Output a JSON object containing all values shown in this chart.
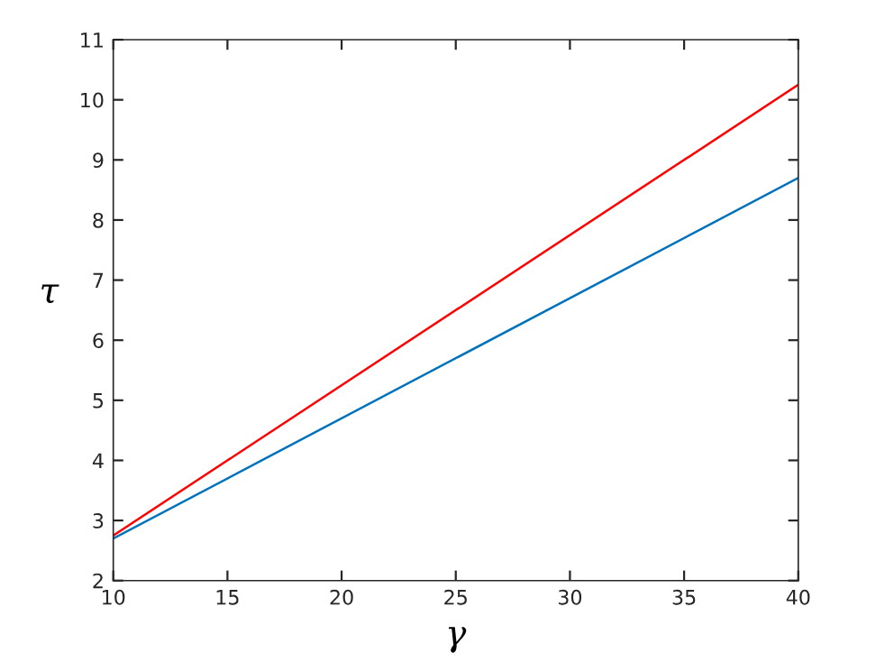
{
  "chart_data": {
    "type": "line",
    "xlabel": "γ",
    "ylabel": "τ",
    "x": [
      10,
      40
    ],
    "series": [
      {
        "color": "#ff0000",
        "values": [
          2.75,
          10.25
        ]
      },
      {
        "color": "#0072bd",
        "values": [
          2.7,
          8.7
        ]
      }
    ],
    "xlim": [
      10,
      40
    ],
    "xticks": [
      10,
      15,
      20,
      25,
      30,
      35,
      40
    ],
    "ylim": [
      2,
      11
    ],
    "yticks": [
      2,
      3,
      4,
      5,
      6,
      7,
      8,
      9,
      10,
      11
    ],
    "grid": false,
    "marker": "none",
    "line_style": "solid"
  }
}
